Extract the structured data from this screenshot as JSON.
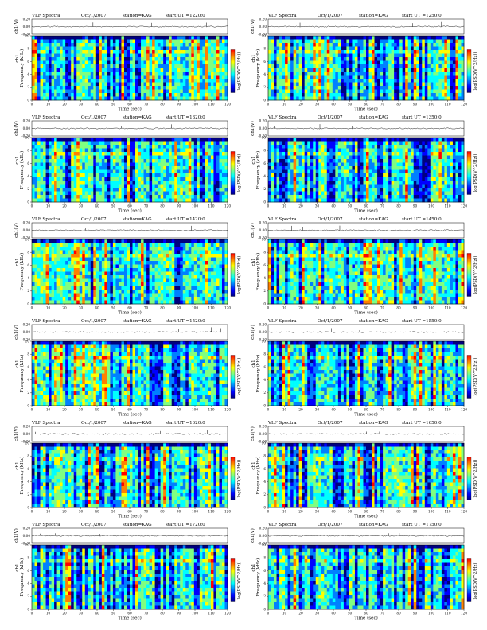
{
  "page": {
    "title": "VLF Spectra",
    "date": "Oct/1/2007",
    "station_label": "station=KAG",
    "start_prefix": "start  UT  ="
  },
  "labels": {
    "ch_axis": "ch1(V)",
    "freq_axis": "Frequency (kHz)",
    "channel": "ch1",
    "time_axis": "Time  (sec)",
    "colorbar_axis": "log(PSD(V^2/Hz))"
  },
  "colors": {
    "colormap": [
      "#00007f",
      "#0000ff",
      "#0080ff",
      "#00ffff",
      "#80ff80",
      "#ffff00",
      "#ff8000",
      "#ff0000"
    ]
  },
  "chart_data": [
    {
      "type": "heatmap",
      "panel": 1,
      "start_ut": "1220:0",
      "x_range": [
        0,
        120
      ],
      "freq_range": [
        0,
        10
      ],
      "ch_range": [
        -0.2,
        0.2
      ],
      "x_ticks": [
        0,
        10,
        20,
        30,
        40,
        50,
        60,
        70,
        80,
        90,
        100,
        110,
        120
      ],
      "freq_ticks": [
        0,
        2,
        4,
        6,
        8,
        10
      ],
      "ch_ticks": [
        "0.20",
        "0.00",
        "-0.20"
      ]
    },
    {
      "type": "heatmap",
      "panel": 2,
      "start_ut": "1250:0",
      "x_range": [
        0,
        120
      ],
      "freq_range": [
        0,
        10
      ],
      "ch_range": [
        -0.2,
        0.2
      ],
      "x_ticks": [
        0,
        10,
        20,
        30,
        40,
        50,
        60,
        70,
        80,
        90,
        100,
        110,
        120
      ],
      "freq_ticks": [
        0,
        2,
        4,
        6,
        8,
        10
      ],
      "ch_ticks": [
        "0.20",
        "0.00",
        "-0.20"
      ]
    },
    {
      "type": "heatmap",
      "panel": 3,
      "start_ut": "1320:0",
      "x_range": [
        0,
        120
      ],
      "freq_range": [
        0,
        10
      ],
      "ch_range": [
        -0.2,
        0.2
      ],
      "x_ticks": [
        0,
        10,
        20,
        30,
        40,
        50,
        60,
        70,
        80,
        90,
        100,
        110,
        120
      ],
      "freq_ticks": [
        0,
        2,
        4,
        6,
        8,
        10
      ],
      "ch_ticks": [
        "0.20",
        "0.00",
        "-0.20"
      ]
    },
    {
      "type": "heatmap",
      "panel": 4,
      "start_ut": "1350:0",
      "x_range": [
        0,
        120
      ],
      "freq_range": [
        0,
        10
      ],
      "ch_range": [
        -0.2,
        0.2
      ],
      "x_ticks": [
        0,
        10,
        20,
        30,
        40,
        50,
        60,
        70,
        80,
        90,
        100,
        110,
        120
      ],
      "freq_ticks": [
        0,
        2,
        4,
        6,
        8,
        10
      ],
      "ch_ticks": [
        "0.20",
        "0.00",
        "-0.20"
      ]
    },
    {
      "type": "heatmap",
      "panel": 5,
      "start_ut": "1420:0",
      "x_range": [
        0,
        120
      ],
      "freq_range": [
        0,
        10
      ],
      "ch_range": [
        -0.2,
        0.2
      ],
      "x_ticks": [
        0,
        10,
        20,
        30,
        40,
        50,
        60,
        70,
        80,
        90,
        100,
        110,
        120
      ],
      "freq_ticks": [
        0,
        2,
        4,
        6,
        8,
        10
      ],
      "ch_ticks": [
        "0.20",
        "0.00",
        "-0.20"
      ]
    },
    {
      "type": "heatmap",
      "panel": 6,
      "start_ut": "1450:0",
      "x_range": [
        0,
        120
      ],
      "freq_range": [
        0,
        10
      ],
      "ch_range": [
        -0.2,
        0.2
      ],
      "x_ticks": [
        0,
        10,
        20,
        30,
        40,
        50,
        60,
        70,
        80,
        90,
        100,
        110,
        120
      ],
      "freq_ticks": [
        0,
        2,
        4,
        6,
        8,
        10
      ],
      "ch_ticks": [
        "0.20",
        "0.00",
        "-0.20"
      ]
    },
    {
      "type": "heatmap",
      "panel": 7,
      "start_ut": "1520:0",
      "x_range": [
        0,
        120
      ],
      "freq_range": [
        0,
        10
      ],
      "ch_range": [
        -0.2,
        0.2
      ],
      "x_ticks": [
        0,
        10,
        20,
        30,
        40,
        50,
        60,
        70,
        80,
        90,
        100,
        110,
        120
      ],
      "freq_ticks": [
        0,
        2,
        4,
        6,
        8,
        10
      ],
      "ch_ticks": [
        "0.20",
        "0.00",
        "-0.20"
      ]
    },
    {
      "type": "heatmap",
      "panel": 8,
      "start_ut": "1550:0",
      "x_range": [
        0,
        120
      ],
      "freq_range": [
        0,
        10
      ],
      "ch_range": [
        -0.2,
        0.2
      ],
      "x_ticks": [
        0,
        10,
        20,
        30,
        40,
        50,
        60,
        70,
        80,
        90,
        100,
        110,
        120
      ],
      "freq_ticks": [
        0,
        2,
        4,
        6,
        8,
        10
      ],
      "ch_ticks": [
        "0.20",
        "0.00",
        "-0.20"
      ]
    },
    {
      "type": "heatmap",
      "panel": 9,
      "start_ut": "1620:0",
      "x_range": [
        0,
        120
      ],
      "freq_range": [
        0,
        10
      ],
      "ch_range": [
        -0.2,
        0.2
      ],
      "x_ticks": [
        0,
        10,
        20,
        30,
        40,
        50,
        60,
        70,
        80,
        90,
        100,
        110,
        120
      ],
      "freq_ticks": [
        0,
        2,
        4,
        6,
        8,
        10
      ],
      "ch_ticks": [
        "0.20",
        "0.00",
        "-0.20"
      ]
    },
    {
      "type": "heatmap",
      "panel": 10,
      "start_ut": "1650:0",
      "x_range": [
        0,
        120
      ],
      "freq_range": [
        0,
        10
      ],
      "ch_range": [
        -0.2,
        0.2
      ],
      "x_ticks": [
        0,
        10,
        20,
        30,
        40,
        50,
        60,
        70,
        80,
        90,
        100,
        110,
        120
      ],
      "freq_ticks": [
        0,
        2,
        4,
        6,
        8,
        10
      ],
      "ch_ticks": [
        "0.20",
        "0.00",
        "-0.20"
      ]
    },
    {
      "type": "heatmap",
      "panel": 11,
      "start_ut": "1720:0",
      "x_range": [
        0,
        120
      ],
      "freq_range": [
        0,
        10
      ],
      "ch_range": [
        -0.2,
        0.2
      ],
      "x_ticks": [
        0,
        10,
        20,
        30,
        40,
        50,
        60,
        70,
        80,
        90,
        100,
        110,
        120
      ],
      "freq_ticks": [
        0,
        2,
        4,
        6,
        8,
        10
      ],
      "ch_ticks": [
        "0.20",
        "0.00",
        "-0.20"
      ]
    },
    {
      "type": "heatmap",
      "panel": 12,
      "start_ut": "1750:0",
      "x_range": [
        0,
        120
      ],
      "freq_range": [
        0,
        10
      ],
      "ch_range": [
        -0.2,
        0.2
      ],
      "x_ticks": [
        0,
        10,
        20,
        30,
        40,
        50,
        60,
        70,
        80,
        90,
        100,
        110,
        120
      ],
      "freq_ticks": [
        0,
        2,
        4,
        6,
        8,
        10
      ],
      "ch_ticks": [
        "0.20",
        "0.00",
        "-0.20"
      ]
    }
  ]
}
